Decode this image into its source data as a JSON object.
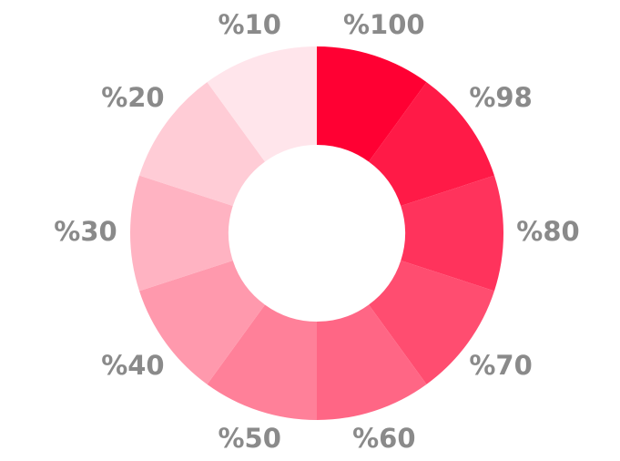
{
  "chart_data": {
    "type": "donut",
    "categories": [
      "%100",
      "%98",
      "%80",
      "%70",
      "%60",
      "%50",
      "%40",
      "%30",
      "%20",
      "%10"
    ],
    "values": [
      10,
      10,
      10,
      10,
      10,
      10,
      10,
      10,
      10,
      10
    ],
    "colors": [
      "#ff0033",
      "#ff1a47",
      "#ff335c",
      "#ff4d70",
      "#ff6685",
      "#ff8099",
      "#ff99ad",
      "#ffb3c2",
      "#ffccd6",
      "#ffe5eb"
    ]
  }
}
